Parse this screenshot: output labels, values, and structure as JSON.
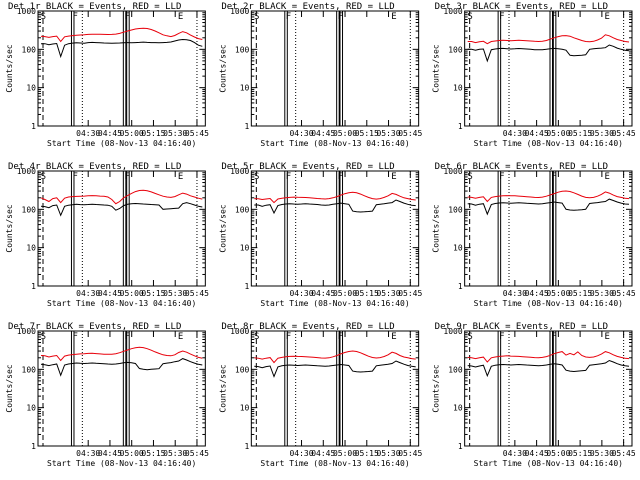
{
  "chart_data": [
    {
      "type": "line",
      "title": "Det 1r BLACK = Events, RED = LLD",
      "xlabel": "Start Time (08-Nov-13 04:16:40)",
      "ylabel": "Counts/sec",
      "ylim": [
        1,
        1000
      ],
      "yscale": "log",
      "yticks": [
        "1",
        "10",
        "100",
        "1000"
      ],
      "xticks": [
        "04:30",
        "04:45",
        "05:00",
        "05:15",
        "05:30",
        "05:45"
      ],
      "markers": [
        "S",
        "F",
        "F",
        "E"
      ],
      "grid": false,
      "has_data": true,
      "series": [
        {
          "name": "Events",
          "color": "#000000",
          "values": [
            140,
            140,
            132,
            138,
            142,
            65,
            128,
            140,
            145,
            148,
            146,
            144,
            150,
            152,
            150,
            148,
            146,
            145,
            144,
            145,
            146,
            148,
            150,
            148,
            150,
            152,
            154,
            152,
            150,
            150,
            148,
            150,
            152,
            155,
            165,
            175,
            180,
            178,
            170,
            150,
            128,
            120
          ]
        },
        {
          "name": "LLD",
          "color": "#e8000b",
          "values": [
            220,
            215,
            205,
            215,
            222,
            160,
            212,
            222,
            228,
            232,
            236,
            240,
            245,
            248,
            248,
            246,
            245,
            244,
            245,
            250,
            260,
            280,
            300,
            320,
            340,
            350,
            355,
            350,
            330,
            300,
            270,
            240,
            225,
            215,
            230,
            260,
            290,
            270,
            235,
            210,
            190,
            180
          ]
        }
      ]
    },
    {
      "type": "line",
      "title": "Det 2r BLACK = Events, RED = LLD",
      "xlabel": "Start Time (08-Nov-13 04:16:40)",
      "ylabel": "Counts/sec",
      "ylim": [
        1,
        1000
      ],
      "yscale": "log",
      "yticks": [
        "1",
        "10",
        "100",
        "1000"
      ],
      "xticks": [
        "04:30",
        "04:45",
        "05:00",
        "05:15",
        "05:30",
        "05:45"
      ],
      "markers": [
        "S",
        "F",
        "F",
        "E"
      ],
      "grid": false,
      "has_data": false,
      "series": []
    },
    {
      "type": "line",
      "title": "Det 3r BLACK = Events, RED = LLD",
      "xlabel": "Start Time (08-Nov-13 04:16:40)",
      "ylabel": "Counts/sec",
      "ylim": [
        1,
        1000
      ],
      "yscale": "log",
      "yticks": [
        "1",
        "10",
        "100",
        "1000"
      ],
      "xticks": [
        "04:30",
        "04:45",
        "05:00",
        "05:15",
        "05:30",
        "05:45"
      ],
      "markers": [
        "S",
        "F",
        "F",
        "E"
      ],
      "grid": false,
      "has_data": true,
      "series": [
        {
          "name": "Events",
          "color": "#000000",
          "values": [
            100,
            100,
            95,
            100,
            102,
            50,
            98,
            102,
            105,
            106,
            104,
            102,
            103,
            105,
            104,
            102,
            100,
            98,
            97,
            98,
            100,
            104,
            106,
            104,
            100,
            95,
            70,
            68,
            69,
            70,
            72,
            100,
            104,
            106,
            108,
            110,
            130,
            120,
            108,
            100,
            95,
            92
          ]
        },
        {
          "name": "LLD",
          "color": "#e8000b",
          "values": [
            160,
            160,
            150,
            158,
            162,
            140,
            160,
            165,
            170,
            172,
            170,
            168,
            170,
            172,
            170,
            168,
            165,
            162,
            160,
            162,
            170,
            185,
            200,
            215,
            225,
            228,
            220,
            200,
            185,
            170,
            160,
            158,
            162,
            175,
            195,
            240,
            225,
            200,
            180,
            170,
            160,
            155
          ]
        }
      ]
    },
    {
      "type": "line",
      "title": "Det 4r BLACK = Events, RED = LLD",
      "xlabel": "Start Time (08-Nov-13 04:16:40)",
      "ylabel": "Counts/sec",
      "ylim": [
        1,
        1000
      ],
      "yscale": "log",
      "yticks": [
        "1",
        "10",
        "100",
        "1000"
      ],
      "xticks": [
        "04:30",
        "04:45",
        "05:00",
        "05:15",
        "05:30",
        "05:45"
      ],
      "markers": [
        "S",
        "F",
        "F",
        "E"
      ],
      "grid": false,
      "has_data": true,
      "series": [
        {
          "name": "Events",
          "color": "#000000",
          "values": [
            120,
            118,
            110,
            125,
            130,
            70,
            120,
            128,
            132,
            135,
            133,
            132,
            134,
            136,
            134,
            132,
            130,
            128,
            120,
            95,
            105,
            125,
            135,
            140,
            142,
            140,
            138,
            136,
            134,
            132,
            130,
            100,
            102,
            104,
            106,
            108,
            140,
            150,
            140,
            130,
            120,
            115
          ]
        },
        {
          "name": "LLD",
          "color": "#e8000b",
          "values": [
            200,
            180,
            160,
            190,
            200,
            150,
            195,
            210,
            215,
            218,
            220,
            222,
            225,
            228,
            226,
            222,
            220,
            210,
            180,
            140,
            160,
            200,
            230,
            260,
            290,
            310,
            315,
            305,
            285,
            260,
            240,
            220,
            210,
            205,
            215,
            240,
            265,
            250,
            225,
            210,
            195,
            185
          ]
        }
      ]
    },
    {
      "type": "line",
      "title": "Det 5r BLACK = Events, RED = LLD",
      "xlabel": "Start Time (08-Nov-13 04:16:40)",
      "ylabel": "Counts/sec",
      "ylim": [
        1,
        1000
      ],
      "yscale": "log",
      "yticks": [
        "1",
        "10",
        "100",
        "1000"
      ],
      "xticks": [
        "04:30",
        "04:45",
        "05:00",
        "05:15",
        "05:30",
        "05:45"
      ],
      "markers": [
        "S",
        "F",
        "F",
        "E"
      ],
      "grid": false,
      "has_data": true,
      "series": [
        {
          "name": "Events",
          "color": "#000000",
          "values": [
            130,
            130,
            120,
            128,
            132,
            80,
            126,
            134,
            138,
            140,
            138,
            136,
            138,
            140,
            138,
            136,
            134,
            130,
            128,
            130,
            135,
            140,
            145,
            140,
            135,
            90,
            86,
            85,
            86,
            88,
            90,
            132,
            136,
            140,
            145,
            150,
            175,
            160,
            145,
            135,
            128,
            125
          ]
        },
        {
          "name": "LLD",
          "color": "#e8000b",
          "values": [
            190,
            188,
            180,
            186,
            192,
            150,
            186,
            195,
            200,
            205,
            208,
            206,
            205,
            204,
            200,
            196,
            192,
            188,
            186,
            190,
            200,
            215,
            235,
            255,
            270,
            278,
            270,
            250,
            225,
            205,
            190,
            185,
            190,
            205,
            225,
            260,
            245,
            220,
            200,
            190,
            180,
            175
          ]
        }
      ]
    },
    {
      "type": "line",
      "title": "Det 6r BLACK = Events, RED = LLD",
      "xlabel": "Start Time (08-Nov-13 04:16:40)",
      "ylabel": "Counts/sec",
      "ylim": [
        1,
        1000
      ],
      "yscale": "log",
      "yticks": [
        "1",
        "10",
        "100",
        "1000"
      ],
      "xticks": [
        "04:30",
        "04:45",
        "05:00",
        "05:15",
        "05:30",
        "05:45"
      ],
      "markers": [
        "S",
        "F",
        "F",
        "E"
      ],
      "grid": false,
      "has_data": true,
      "series": [
        {
          "name": "Events",
          "color": "#000000",
          "values": [
            140,
            138,
            128,
            136,
            140,
            75,
            134,
            142,
            146,
            148,
            146,
            144,
            146,
            148,
            146,
            144,
            142,
            140,
            138,
            140,
            145,
            150,
            155,
            150,
            145,
            100,
            96,
            95,
            96,
            98,
            100,
            142,
            146,
            150,
            155,
            160,
            185,
            170,
            155,
            145,
            138,
            135
          ]
        },
        {
          "name": "LLD",
          "color": "#e8000b",
          "values": [
            210,
            205,
            195,
            205,
            212,
            160,
            205,
            215,
            222,
            226,
            228,
            226,
            225,
            222,
            218,
            214,
            210,
            205,
            204,
            208,
            220,
            238,
            258,
            280,
            295,
            300,
            292,
            270,
            245,
            222,
            205,
            200,
            205,
            220,
            245,
            285,
            265,
            235,
            215,
            205,
            195,
            190
          ]
        }
      ]
    },
    {
      "type": "line",
      "title": "Det 7r BLACK = Events, RED = LLD",
      "xlabel": "Start Time (08-Nov-13 04:16:40)",
      "ylabel": "Counts/sec",
      "ylim": [
        1,
        1000
      ],
      "yscale": "log",
      "yticks": [
        "1",
        "10",
        "100",
        "1000"
      ],
      "xticks": [
        "04:30",
        "04:45",
        "05:00",
        "05:15",
        "05:30",
        "05:45"
      ],
      "markers": [
        "S",
        "F",
        "F",
        "E"
      ],
      "grid": false,
      "has_data": true,
      "series": [
        {
          "name": "Events",
          "color": "#000000",
          "values": [
            135,
            132,
            125,
            132,
            138,
            70,
            130,
            138,
            142,
            146,
            144,
            142,
            144,
            146,
            144,
            142,
            140,
            138,
            136,
            138,
            142,
            148,
            152,
            148,
            142,
            105,
            100,
            98,
            100,
            102,
            104,
            140,
            145,
            150,
            158,
            165,
            190,
            175,
            158,
            145,
            135,
            130
          ]
        },
        {
          "name": "LLD",
          "color": "#e8000b",
          "values": [
            230,
            225,
            210,
            222,
            230,
            170,
            222,
            235,
            242,
            248,
            252,
            256,
            260,
            262,
            258,
            252,
            248,
            246,
            248,
            256,
            272,
            295,
            320,
            345,
            365,
            375,
            368,
            345,
            315,
            285,
            260,
            240,
            230,
            225,
            240,
            275,
            300,
            280,
            250,
            225,
            205,
            195
          ]
        }
      ]
    },
    {
      "type": "line",
      "title": "Det 8r BLACK = Events, RED = LLD",
      "xlabel": "Start Time (08-Nov-13 04:16:40)",
      "ylabel": "Counts/sec",
      "ylim": [
        1,
        1000
      ],
      "yscale": "log",
      "yticks": [
        "1",
        "10",
        "100",
        "1000"
      ],
      "xticks": [
        "04:30",
        "04:45",
        "05:00",
        "05:15",
        "05:30",
        "05:45"
      ],
      "markers": [
        "S",
        "F",
        "F",
        "E"
      ],
      "grid": false,
      "has_data": true,
      "series": [
        {
          "name": "Events",
          "color": "#000000",
          "values": [
            120,
            118,
            110,
            118,
            122,
            65,
            116,
            124,
            128,
            130,
            128,
            126,
            128,
            130,
            128,
            126,
            124,
            122,
            120,
            122,
            126,
            130,
            134,
            130,
            126,
            90,
            86,
            85,
            86,
            88,
            90,
            124,
            128,
            132,
            136,
            142,
            165,
            150,
            136,
            126,
            120,
            116
          ]
        },
        {
          "name": "LLD",
          "color": "#e8000b",
          "values": [
            200,
            195,
            185,
            195,
            202,
            150,
            195,
            205,
            212,
            218,
            220,
            218,
            216,
            214,
            210,
            206,
            202,
            198,
            196,
            200,
            212,
            230,
            252,
            275,
            292,
            300,
            292,
            270,
            244,
            220,
            204,
            198,
            202,
            216,
            240,
            280,
            260,
            230,
            210,
            200,
            190,
            185
          ]
        }
      ]
    },
    {
      "type": "line",
      "title": "Det 9r BLACK = Events, RED = LLD",
      "xlabel": "Start Time (08-Nov-13 04:16:40)",
      "ylabel": "Counts/sec",
      "ylim": [
        1,
        1000
      ],
      "yscale": "log",
      "yticks": [
        "1",
        "10",
        "100",
        "1000"
      ],
      "xticks": [
        "04:30",
        "04:45",
        "05:00",
        "05:15",
        "05:30",
        "05:45"
      ],
      "markers": [
        "S",
        "F",
        "F",
        "E"
      ],
      "grid": false,
      "has_data": true,
      "series": [
        {
          "name": "Events",
          "color": "#000000",
          "values": [
            125,
            122,
            115,
            122,
            128,
            68,
            120,
            128,
            132,
            134,
            132,
            130,
            132,
            134,
            132,
            130,
            128,
            126,
            124,
            126,
            130,
            135,
            140,
            135,
            130,
            95,
            90,
            88,
            90,
            92,
            94,
            128,
            132,
            136,
            140,
            146,
            170,
            155,
            140,
            130,
            124,
            120
          ]
        },
        {
          "name": "LLD",
          "color": "#e8000b",
          "values": [
            205,
            200,
            190,
            200,
            208,
            155,
            200,
            210,
            218,
            222,
            225,
            222,
            220,
            218,
            214,
            210,
            206,
            202,
            200,
            205,
            215,
            232,
            255,
            275,
            290,
            235,
            260,
            240,
            285,
            230,
            210,
            205,
            210,
            225,
            250,
            290,
            270,
            240,
            218,
            205,
            195,
            190
          ]
        }
      ]
    }
  ]
}
